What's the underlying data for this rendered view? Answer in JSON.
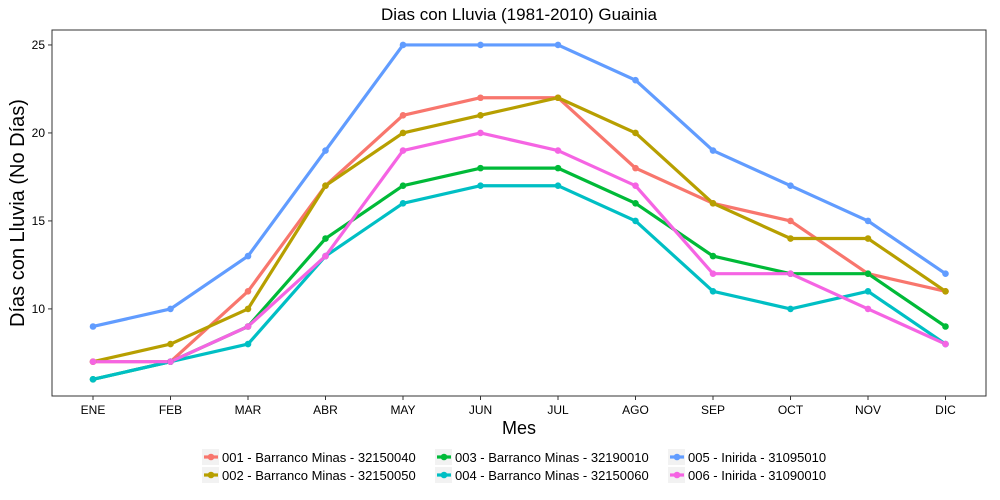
{
  "chart_data": {
    "type": "line",
    "title": "Dias con Lluvia (1981-2010)  Guainia",
    "xlabel": "Mes",
    "ylabel": "Días con Lluvia (No Días)",
    "categories": [
      "ENE",
      "FEB",
      "MAR",
      "ABR",
      "MAY",
      "JUN",
      "JUL",
      "AGO",
      "SEP",
      "OCT",
      "NOV",
      "DIC"
    ],
    "yticks": [
      10,
      15,
      20,
      25
    ],
    "ylim": [
      5.05,
      25.85
    ],
    "grid": false,
    "legend_position": "bottom",
    "series": [
      {
        "name": "001 - Barranco Minas - 32150040",
        "color": "#F8766D",
        "values": [
          7,
          7,
          11,
          17,
          21,
          22,
          22,
          18,
          16,
          15,
          12,
          11
        ]
      },
      {
        "name": "002 - Barranco Minas - 32150050",
        "color": "#B79F00",
        "values": [
          7,
          8,
          10,
          17,
          20,
          21,
          22,
          20,
          16,
          14,
          14,
          11
        ]
      },
      {
        "name": "003 - Barranco Minas - 32190010",
        "color": "#00BA38",
        "values": [
          6,
          7,
          9,
          14,
          17,
          18,
          18,
          16,
          13,
          12,
          12,
          9
        ]
      },
      {
        "name": "004 - Barranco Minas - 32150060",
        "color": "#00BFC4",
        "values": [
          6,
          7,
          8,
          13,
          16,
          17,
          17,
          15,
          11,
          10,
          11,
          8
        ]
      },
      {
        "name": "005 - Inirida - 31095010",
        "color": "#619CFF",
        "values": [
          9,
          10,
          13,
          19,
          25,
          25,
          25,
          23,
          19,
          17,
          15,
          12
        ]
      },
      {
        "name": "006 - Inirida - 31090010",
        "color": "#F564E3",
        "values": [
          7,
          7,
          9,
          13,
          19,
          20,
          19,
          17,
          12,
          12,
          10,
          8
        ]
      }
    ]
  }
}
